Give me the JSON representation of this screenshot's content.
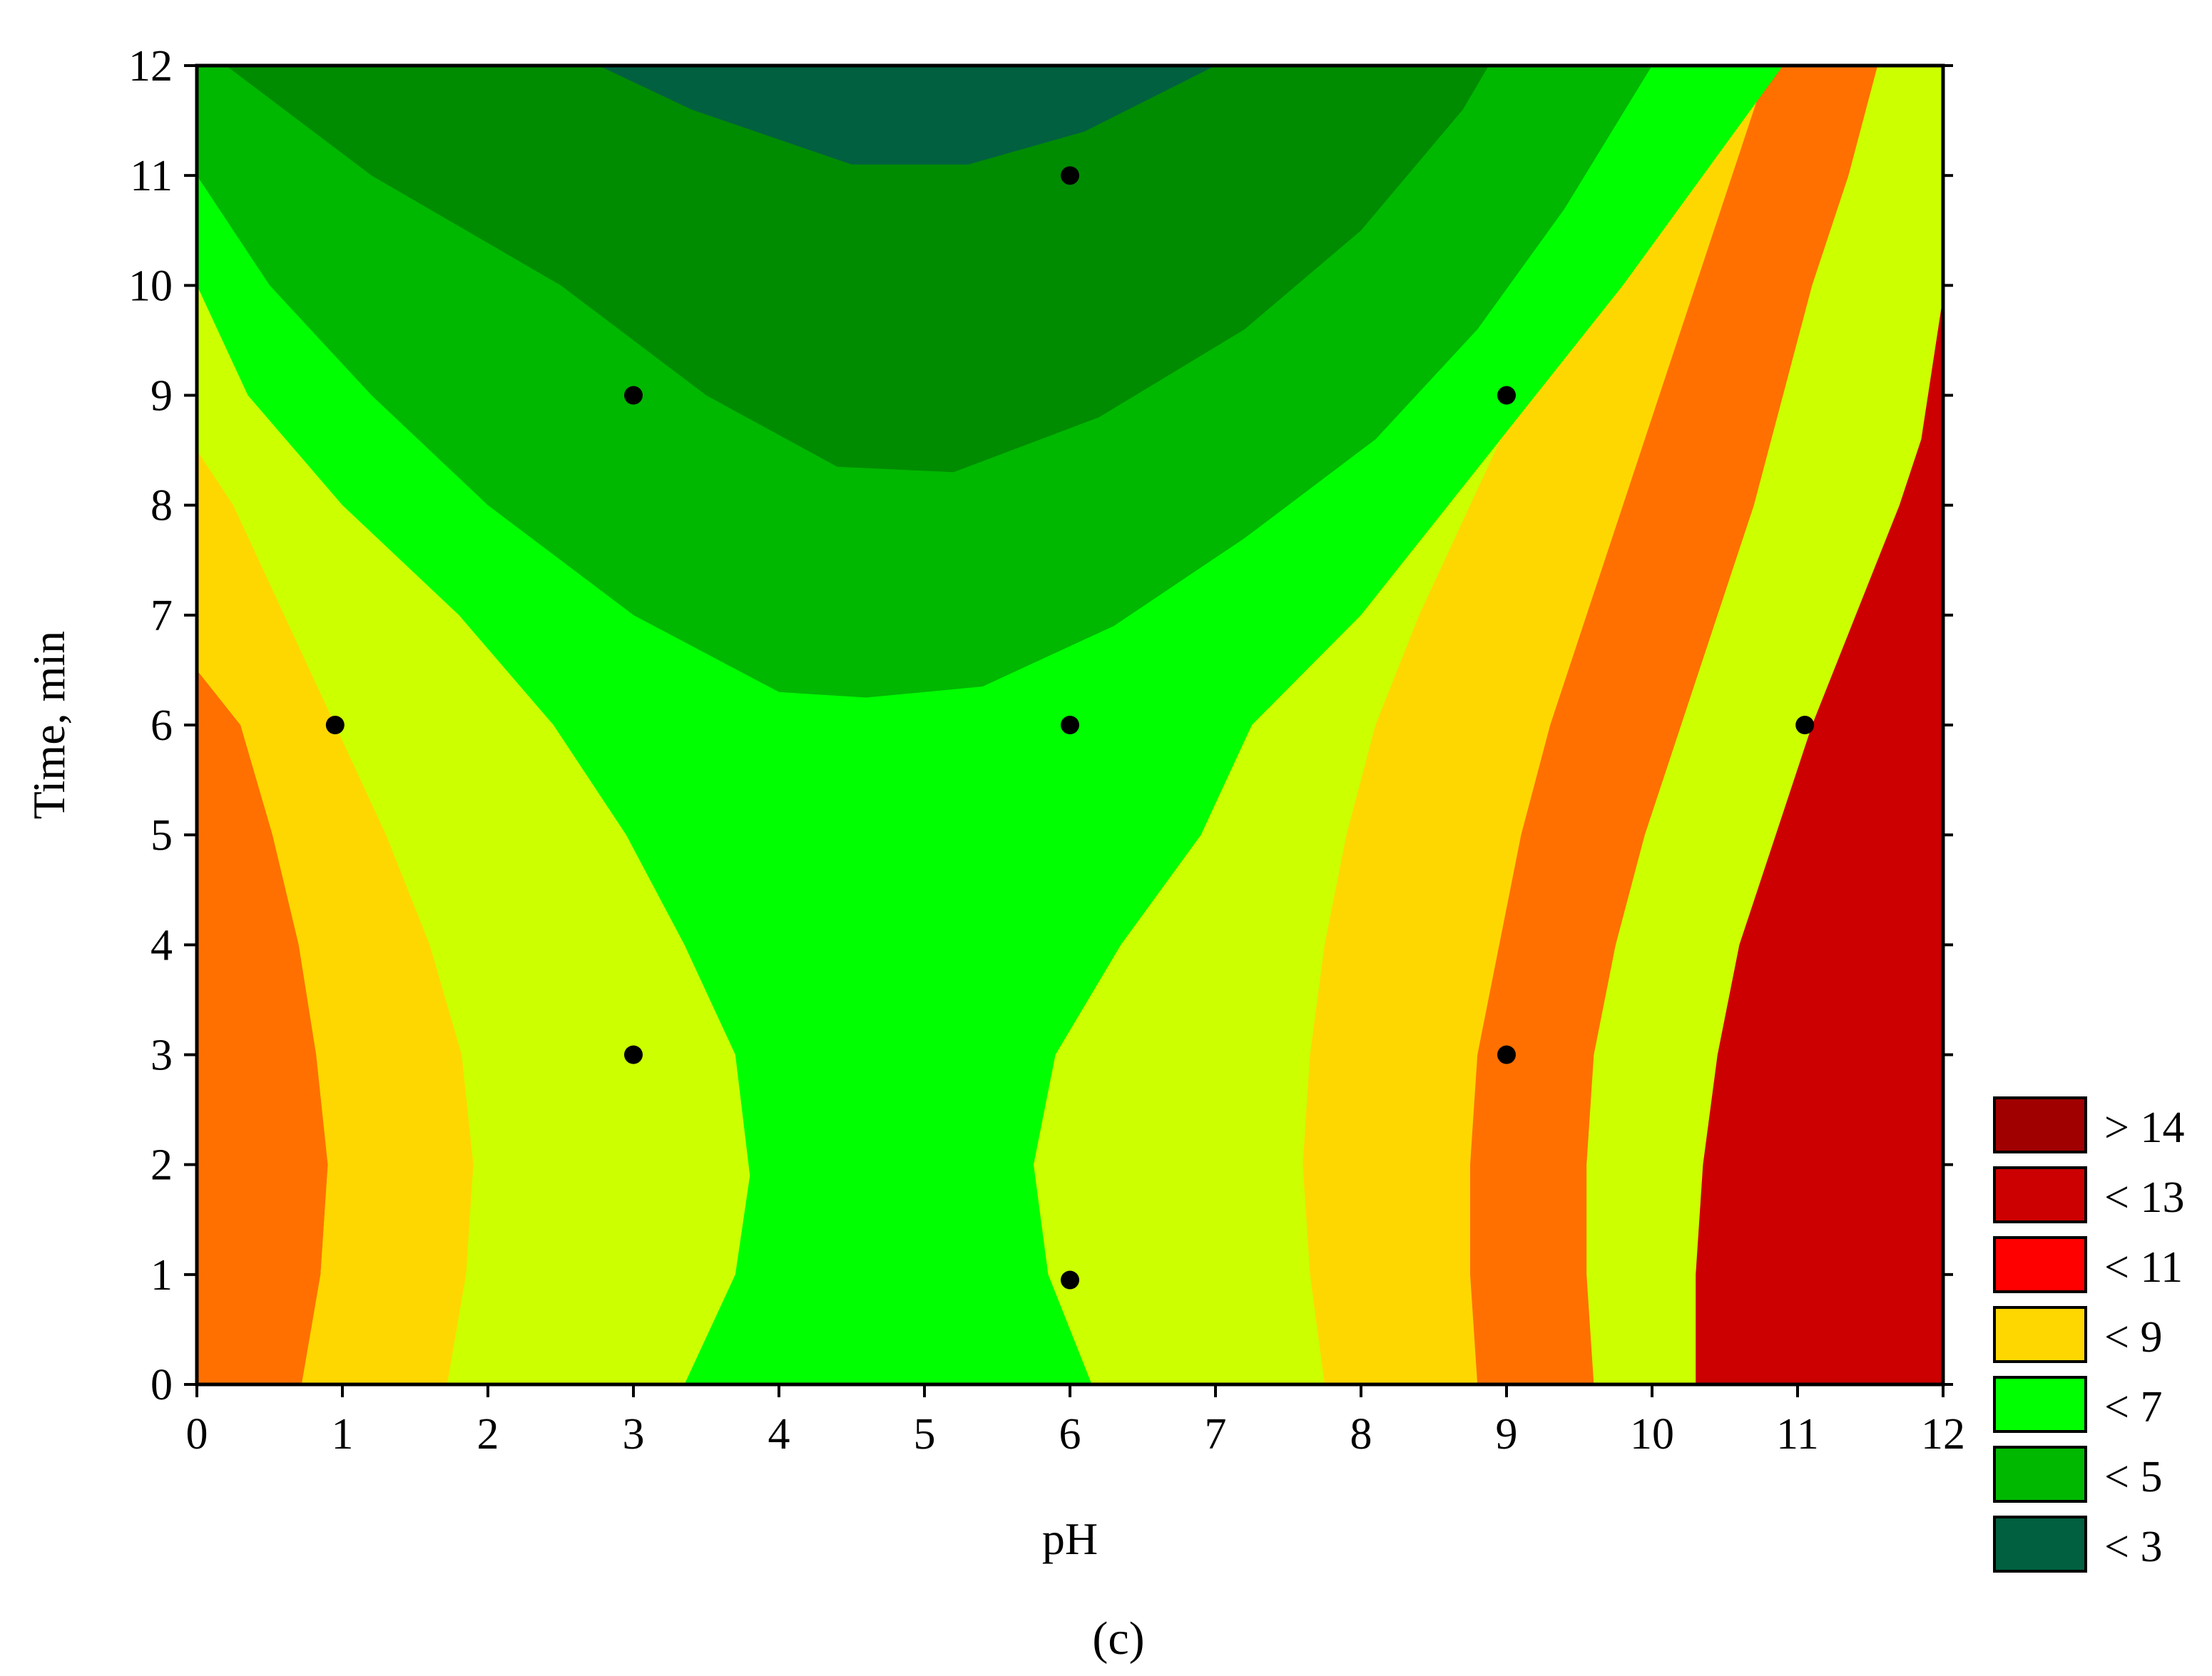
{
  "chart_data": {
    "type": "contour",
    "xlabel": "pH",
    "ylabel": "Time, min",
    "xlim": [
      0,
      12
    ],
    "ylim": [
      0,
      12
    ],
    "x_ticks": [
      "0",
      "1",
      "2",
      "3",
      "4",
      "5",
      "6",
      "7",
      "8",
      "9",
      "10",
      "11",
      "12"
    ],
    "y_ticks": [
      "0",
      "1",
      "2",
      "3",
      "4",
      "5",
      "6",
      "7",
      "8",
      "9",
      "10",
      "11",
      "12"
    ],
    "grid": false,
    "legend_position": "bottom-right",
    "legend": [
      {
        "label": "> 14",
        "color": "#a00000"
      },
      {
        "label": "< 13",
        "color": "#cc0000"
      },
      {
        "label": "< 11",
        "color": "#ff0000"
      },
      {
        "label": "< 9",
        "color": "#ffd700"
      },
      {
        "label": "< 7",
        "color": "#00ff00"
      },
      {
        "label": "< 5",
        "color": "#00b800"
      },
      {
        "label": "< 3",
        "color": "#006040"
      }
    ],
    "band_colors": {
      "lt3": "#006040",
      "lt5": "#008c00",
      "lt5b": "#00b800",
      "lt7": "#00ff00",
      "lt9a": "#ccff00",
      "lt9b": "#ffd700",
      "lt11": "#ff7000",
      "lt13": "#ff0000",
      "lt13b": "#cc0000",
      "gt14": "#a00000"
    },
    "points": [
      {
        "x": 0.95,
        "y": 6
      },
      {
        "x": 3,
        "y": 3
      },
      {
        "x": 3,
        "y": 9
      },
      {
        "x": 6,
        "y": 0.95
      },
      {
        "x": 6,
        "y": 6
      },
      {
        "x": 6,
        "y": 11
      },
      {
        "x": 9,
        "y": 3
      },
      {
        "x": 9,
        "y": 9
      },
      {
        "x": 11.05,
        "y": 6
      }
    ],
    "caption": "(c)"
  }
}
